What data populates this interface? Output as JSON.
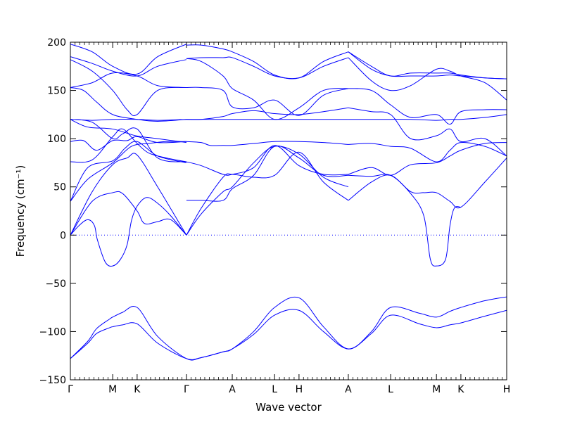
{
  "chart_data": {
    "type": "line",
    "title": "",
    "xlabel": "Wave vector",
    "ylabel": "Frequency (cm⁻¹)",
    "ylim": [
      -150,
      200
    ],
    "yticks": [
      -150,
      -100,
      -50,
      0,
      50,
      100,
      150,
      200
    ],
    "ytick_labels": [
      "−150",
      "−100",
      "−50",
      "0",
      "50",
      "100",
      "150",
      "200"
    ],
    "xlim": [
      0,
      1
    ],
    "xticks": [
      {
        "label": "Γ",
        "pos": 0.0
      },
      {
        "label": "M",
        "pos": 0.097
      },
      {
        "label": "K",
        "pos": 0.153
      },
      {
        "label": "Γ",
        "pos": 0.266
      },
      {
        "label": "A",
        "pos": 0.371
      },
      {
        "label": "L",
        "pos": 0.468
      },
      {
        "label": "H",
        "pos": 0.524
      },
      {
        "label": "A",
        "pos": 0.637
      },
      {
        "label": "L",
        "pos": 0.734
      },
      {
        "label": "M",
        "pos": 0.839
      },
      {
        "label": "K",
        "pos": 0.895
      },
      {
        "label": "H",
        "pos": 1.0
      }
    ],
    "zero_line": {
      "y": 0,
      "style": "dotted"
    },
    "line_color": "#0000ff",
    "series": [
      {
        "x": [
          0,
          0.04,
          0.06,
          0.09,
          0.097,
          0.12,
          0.153,
          0.2,
          0.266,
          0.3,
          0.35,
          0.371,
          0.42,
          0.468,
          0.524,
          0.58,
          0.637,
          0.69,
          0.734,
          0.8,
          0.839,
          0.87,
          0.895,
          0.95,
          1.0
        ],
        "y": [
          -128,
          -110,
          -97,
          -87,
          -85,
          -80,
          -75,
          -105,
          -128,
          -127,
          -121,
          -118,
          -100,
          -75,
          -65,
          -95,
          -118,
          -100,
          -75,
          -81,
          -85,
          -79,
          -75,
          -68,
          -64
        ]
      },
      {
        "x": [
          0,
          0.04,
          0.06,
          0.09,
          0.097,
          0.12,
          0.153,
          0.2,
          0.266,
          0.3,
          0.35,
          0.371,
          0.42,
          0.468,
          0.524,
          0.58,
          0.637,
          0.69,
          0.734,
          0.8,
          0.839,
          0.87,
          0.895,
          0.95,
          1.0
        ],
        "y": [
          -128,
          -112,
          -102,
          -96,
          -95,
          -93,
          -92,
          -112,
          -128,
          -127,
          -121,
          -118,
          -103,
          -83,
          -78,
          -100,
          -118,
          -102,
          -83,
          -92,
          -96,
          -93,
          -91,
          -84,
          -78
        ]
      },
      {
        "x": [
          0,
          0.02,
          0.04,
          0.055,
          0.062,
          0.08,
          0.097,
          0.115,
          0.13,
          0.14,
          0.153,
          0.175,
          0.2,
          0.23,
          0.266
        ],
        "y": [
          0,
          10,
          16,
          10,
          -5,
          -28,
          -32,
          -25,
          -10,
          15,
          30,
          39,
          33,
          20,
          0
        ]
      },
      {
        "x": [
          0,
          0.05,
          0.097,
          0.12,
          0.153,
          0.17,
          0.2,
          0.23,
          0.266
        ],
        "y": [
          0,
          35,
          44,
          43,
          25,
          12,
          14,
          16,
          0
        ]
      },
      {
        "x": [
          0,
          0.04,
          0.097,
          0.14,
          0.18,
          0.22,
          0.266
        ],
        "y": [
          35,
          58,
          75,
          92,
          95,
          97,
          97
        ]
      },
      {
        "x": [
          0,
          0.05,
          0.097,
          0.13,
          0.153,
          0.2,
          0.266
        ],
        "y": [
          0,
          45,
          73,
          80,
          83,
          50,
          0
        ]
      },
      {
        "x": [
          0,
          0.04,
          0.097,
          0.125,
          0.153,
          0.2,
          0.266
        ],
        "y": [
          35,
          70,
          77,
          90,
          97,
          82,
          75
        ]
      },
      {
        "x": [
          0,
          0.03,
          0.06,
          0.097,
          0.13,
          0.153,
          0.2,
          0.266
        ],
        "y": [
          97,
          98,
          88,
          98,
          98,
          102,
          96,
          97
        ]
      },
      {
        "x": [
          0,
          0.05,
          0.097,
          0.12,
          0.153,
          0.18,
          0.22,
          0.266
        ],
        "y": [
          76,
          78,
          102,
          110,
          95,
          85,
          80,
          76
        ]
      },
      {
        "x": [
          0,
          0.04,
          0.097,
          0.15,
          0.2,
          0.266
        ],
        "y": [
          120,
          112,
          110,
          103,
          100,
          96
        ]
      },
      {
        "x": [
          0,
          0.05,
          0.097,
          0.12,
          0.153,
          0.2,
          0.266
        ],
        "y": [
          120,
          117,
          100,
          105,
          110,
          80,
          76
        ]
      },
      {
        "x": [
          0,
          0.05,
          0.097,
          0.153,
          0.2,
          0.266
        ],
        "y": [
          120,
          119,
          120,
          120,
          119,
          120
        ]
      },
      {
        "x": [
          0,
          0.03,
          0.06,
          0.097,
          0.153,
          0.2,
          0.266
        ],
        "y": [
          153,
          150,
          138,
          125,
          120,
          118,
          120
        ]
      },
      {
        "x": [
          0,
          0.05,
          0.097,
          0.153,
          0.2,
          0.266
        ],
        "y": [
          153,
          158,
          168,
          165,
          155,
          153
        ]
      },
      {
        "x": [
          0,
          0.05,
          0.097,
          0.13,
          0.153,
          0.2,
          0.266
        ],
        "y": [
          182,
          170,
          150,
          130,
          125,
          150,
          153
        ]
      },
      {
        "x": [
          0,
          0.05,
          0.097,
          0.153,
          0.2,
          0.266
        ],
        "y": [
          185,
          178,
          170,
          165,
          175,
          182
        ]
      },
      {
        "x": [
          0,
          0.05,
          0.097,
          0.153,
          0.2,
          0.266
        ],
        "y": [
          198,
          190,
          175,
          167,
          185,
          198
        ]
      },
      {
        "x": [
          0.266,
          0.3,
          0.35,
          0.371,
          0.42,
          0.468,
          0.524,
          0.58,
          0.637
        ],
        "y": [
          0,
          22,
          45,
          50,
          75,
          92,
          84,
          60,
          50
        ]
      },
      {
        "x": [
          0.266,
          0.3,
          0.35,
          0.371,
          0.42,
          0.468,
          0.524,
          0.58,
          0.637
        ],
        "y": [
          0,
          28,
          60,
          63,
          60,
          62,
          86,
          55,
          36
        ]
      },
      {
        "x": [
          0.266,
          0.3,
          0.35,
          0.371,
          0.42,
          0.468,
          0.524,
          0.58,
          0.637
        ],
        "y": [
          36,
          36,
          36,
          48,
          62,
          92,
          80,
          62,
          62
        ]
      },
      {
        "x": [
          0.266,
          0.3,
          0.35,
          0.371,
          0.42,
          0.468,
          0.524,
          0.58,
          0.637
        ],
        "y": [
          76,
          72,
          63,
          63,
          70,
          93,
          72,
          63,
          63
        ]
      },
      {
        "x": [
          0.266,
          0.3,
          0.32,
          0.35,
          0.371,
          0.42,
          0.468,
          0.524,
          0.58,
          0.637
        ],
        "y": [
          97,
          96,
          93,
          93,
          93,
          95,
          97,
          97,
          96,
          94
        ]
      },
      {
        "x": [
          0.266,
          0.3,
          0.35,
          0.371,
          0.42,
          0.468,
          0.524,
          0.58,
          0.637
        ],
        "y": [
          120,
          120,
          120,
          120,
          120,
          120,
          120,
          120,
          120
        ]
      },
      {
        "x": [
          0.266,
          0.3,
          0.35,
          0.371,
          0.42,
          0.468,
          0.524,
          0.58,
          0.637
        ],
        "y": [
          120,
          120,
          123,
          126,
          129,
          126,
          125,
          128,
          132
        ]
      },
      {
        "x": [
          0.266,
          0.3,
          0.35,
          0.371,
          0.42,
          0.468,
          0.524,
          0.58,
          0.637
        ],
        "y": [
          153,
          153,
          150,
          133,
          132,
          140,
          124,
          145,
          152
        ]
      },
      {
        "x": [
          0.266,
          0.3,
          0.35,
          0.371,
          0.42,
          0.468,
          0.524,
          0.58,
          0.637
        ],
        "y": [
          183,
          180,
          165,
          152,
          140,
          120,
          132,
          150,
          152
        ]
      },
      {
        "x": [
          0.266,
          0.3,
          0.35,
          0.371,
          0.42,
          0.468,
          0.524,
          0.58,
          0.637
        ],
        "y": [
          183,
          184,
          184,
          184,
          175,
          165,
          163,
          175,
          184
        ]
      },
      {
        "x": [
          0.266,
          0.3,
          0.35,
          0.371,
          0.42,
          0.468,
          0.524,
          0.58,
          0.637
        ],
        "y": [
          197,
          197,
          193,
          190,
          180,
          166,
          163,
          180,
          190
        ]
      },
      {
        "x": [
          0.637,
          0.69,
          0.734,
          0.78,
          0.81,
          0.839,
          0.87,
          0.895,
          0.95,
          1.0
        ],
        "y": [
          36,
          55,
          62,
          45,
          44,
          44,
          35,
          29,
          55,
          80
        ]
      },
      {
        "x": [
          0.637,
          0.69,
          0.734,
          0.78,
          0.81,
          0.825,
          0.839,
          0.86,
          0.87,
          0.88,
          0.895
        ],
        "y": [
          62,
          61,
          62,
          43,
          20,
          -25,
          -32,
          -25,
          10,
          28,
          29
        ]
      },
      {
        "x": [
          0.637,
          0.69,
          0.734,
          0.78,
          0.839,
          0.87,
          0.895,
          0.95,
          1.0
        ],
        "y": [
          63,
          70,
          62,
          73,
          75,
          82,
          88,
          95,
          96
        ]
      },
      {
        "x": [
          0.637,
          0.69,
          0.734,
          0.78,
          0.839,
          0.87,
          0.895,
          0.95,
          1.0
        ],
        "y": [
          94,
          95,
          92,
          90,
          76,
          88,
          96,
          92,
          82
        ]
      },
      {
        "x": [
          0.637,
          0.69,
          0.734,
          0.78,
          0.839,
          0.87,
          0.895,
          0.95,
          1.0
        ],
        "y": [
          120,
          120,
          120,
          120,
          119,
          120,
          120,
          122,
          125
        ]
      },
      {
        "x": [
          0.637,
          0.69,
          0.734,
          0.78,
          0.839,
          0.87,
          0.895,
          0.95,
          1.0
        ],
        "y": [
          132,
          128,
          125,
          100,
          103,
          110,
          97,
          100,
          82
        ]
      },
      {
        "x": [
          0.637,
          0.69,
          0.734,
          0.78,
          0.839,
          0.87,
          0.895,
          0.95,
          1.0
        ],
        "y": [
          152,
          150,
          135,
          122,
          125,
          115,
          128,
          130,
          130
        ]
      },
      {
        "x": [
          0.637,
          0.69,
          0.734,
          0.78,
          0.839,
          0.87,
          0.895,
          0.95,
          1.0
        ],
        "y": [
          184,
          160,
          150,
          155,
          172,
          170,
          165,
          158,
          140
        ]
      },
      {
        "x": [
          0.637,
          0.69,
          0.734,
          0.78,
          0.839,
          0.87,
          0.895,
          0.95,
          1.0
        ],
        "y": [
          190,
          175,
          165,
          168,
          168,
          168,
          166,
          163,
          162
        ]
      },
      {
        "x": [
          0.637,
          0.69,
          0.734,
          0.78,
          0.839,
          0.87,
          0.895,
          0.95,
          1.0
        ],
        "y": [
          190,
          172,
          165,
          165,
          165,
          166,
          165,
          163,
          162
        ]
      }
    ]
  }
}
